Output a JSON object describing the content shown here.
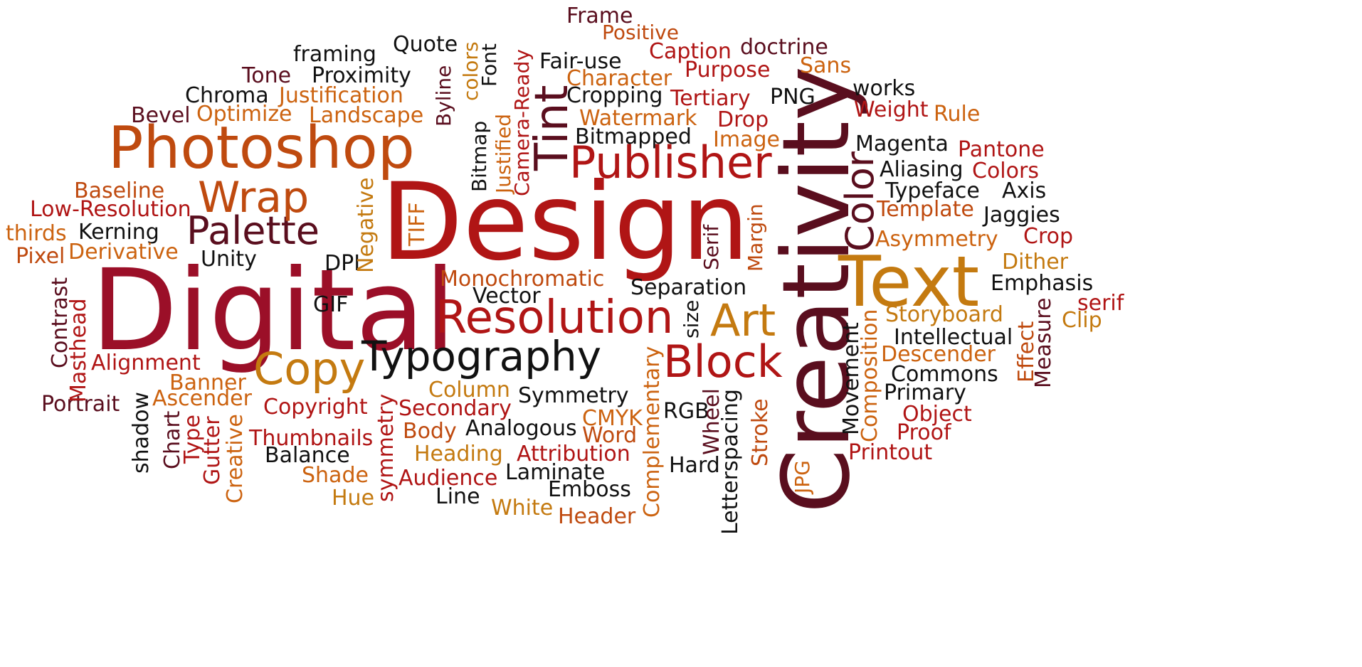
{
  "palette": {
    "maroon": "#5a0e1e",
    "crimson": "#9b0f28",
    "red": "#b01515",
    "rust": "#bf4a0f",
    "orange": "#cc6310",
    "amber": "#c47a10",
    "black": "#111111"
  },
  "words": [
    {
      "id": "digital",
      "text": "Digital",
      "color": "crimson"
    },
    {
      "id": "design",
      "text": "Design",
      "color": "red"
    },
    {
      "id": "creativity",
      "text": "Creativity",
      "color": "maroon"
    },
    {
      "id": "photoshop",
      "text": "Photoshop",
      "color": "rust"
    },
    {
      "id": "text",
      "text": "Text",
      "color": "amber"
    },
    {
      "id": "publisher",
      "text": "Publisher",
      "color": "red"
    },
    {
      "id": "resolution",
      "text": "Resolution",
      "color": "red"
    },
    {
      "id": "typography",
      "text": "Typography",
      "color": "black"
    },
    {
      "id": "palette-word",
      "text": "Palette",
      "color": "maroon"
    },
    {
      "id": "wrap",
      "text": "Wrap",
      "color": "rust"
    },
    {
      "id": "copy",
      "text": "Copy",
      "color": "amber"
    },
    {
      "id": "block",
      "text": "Block",
      "color": "red"
    },
    {
      "id": "art",
      "text": "Art",
      "color": "amber"
    },
    {
      "id": "tint",
      "text": "Tint",
      "color": "maroon"
    },
    {
      "id": "color",
      "text": "Color",
      "color": "maroon"
    },
    {
      "id": "frame",
      "text": "Frame",
      "color": "maroon"
    },
    {
      "id": "positive",
      "text": "Positive",
      "color": "rust"
    },
    {
      "id": "quote",
      "text": "Quote",
      "color": "black"
    },
    {
      "id": "framing",
      "text": "framing",
      "color": "black"
    },
    {
      "id": "fair-use",
      "text": "Fair-use",
      "color": "black"
    },
    {
      "id": "caption",
      "text": "Caption",
      "color": "red"
    },
    {
      "id": "doctrine",
      "text": "doctrine",
      "color": "maroon"
    },
    {
      "id": "sans",
      "text": "Sans",
      "color": "orange"
    },
    {
      "id": "tone",
      "text": "Tone",
      "color": "maroon"
    },
    {
      "id": "proximity",
      "text": "Proximity",
      "color": "black"
    },
    {
      "id": "character",
      "text": "Character",
      "color": "orange"
    },
    {
      "id": "purpose",
      "text": "Purpose",
      "color": "red"
    },
    {
      "id": "works",
      "text": "works",
      "color": "black"
    },
    {
      "id": "chroma",
      "text": "Chroma",
      "color": "black"
    },
    {
      "id": "justification",
      "text": "Justification",
      "color": "orange"
    },
    {
      "id": "cropping",
      "text": "Cropping",
      "color": "black"
    },
    {
      "id": "tertiary",
      "text": "Tertiary",
      "color": "red"
    },
    {
      "id": "png",
      "text": "PNG",
      "color": "black"
    },
    {
      "id": "weight",
      "text": "Weight",
      "color": "red"
    },
    {
      "id": "rule",
      "text": "Rule",
      "color": "orange"
    },
    {
      "id": "bevel",
      "text": "Bevel",
      "color": "maroon"
    },
    {
      "id": "optimize",
      "text": "Optimize",
      "color": "orange"
    },
    {
      "id": "landscape",
      "text": "Landscape",
      "color": "orange"
    },
    {
      "id": "watermark",
      "text": "Watermark",
      "color": "orange"
    },
    {
      "id": "drop",
      "text": "Drop",
      "color": "red"
    },
    {
      "id": "bitmapped",
      "text": "Bitmapped",
      "color": "black"
    },
    {
      "id": "image",
      "text": "Image",
      "color": "orange"
    },
    {
      "id": "magenta",
      "text": "Magenta",
      "color": "black"
    },
    {
      "id": "pantone",
      "text": "Pantone",
      "color": "red"
    },
    {
      "id": "aliasing",
      "text": "Aliasing",
      "color": "black"
    },
    {
      "id": "colors",
      "text": "Colors",
      "color": "red"
    },
    {
      "id": "typeface",
      "text": "Typeface",
      "color": "black"
    },
    {
      "id": "axis",
      "text": "Axis",
      "color": "black"
    },
    {
      "id": "baseline",
      "text": "Baseline",
      "color": "rust"
    },
    {
      "id": "template",
      "text": "Template",
      "color": "rust"
    },
    {
      "id": "low-resolution",
      "text": "Low-Resolution",
      "color": "red"
    },
    {
      "id": "jaggies",
      "text": "Jaggies",
      "color": "black"
    },
    {
      "id": "thirds",
      "text": "thirds",
      "color": "orange"
    },
    {
      "id": "kerning",
      "text": "Kerning",
      "color": "black"
    },
    {
      "id": "asymmetry",
      "text": "Asymmetry",
      "color": "orange"
    },
    {
      "id": "crop",
      "text": "Crop",
      "color": "red"
    },
    {
      "id": "pixel",
      "text": "Pixel",
      "color": "rust"
    },
    {
      "id": "derivative",
      "text": "Derivative",
      "color": "orange"
    },
    {
      "id": "unity",
      "text": "Unity",
      "color": "black"
    },
    {
      "id": "dpi",
      "text": "DPI",
      "color": "black"
    },
    {
      "id": "dither",
      "text": "Dither",
      "color": "amber"
    },
    {
      "id": "monochromatic",
      "text": "Monochromatic",
      "color": "rust"
    },
    {
      "id": "emphasis",
      "text": "Emphasis",
      "color": "black"
    },
    {
      "id": "separation",
      "text": "Separation",
      "color": "black"
    },
    {
      "id": "vector",
      "text": "Vector",
      "color": "black"
    },
    {
      "id": "serif",
      "text": "serif",
      "color": "red"
    },
    {
      "id": "gif",
      "text": "GIF",
      "color": "black"
    },
    {
      "id": "storyboard",
      "text": "Storyboard",
      "color": "amber"
    },
    {
      "id": "clip",
      "text": "Clip",
      "color": "amber"
    },
    {
      "id": "intellectual",
      "text": "Intellectual",
      "color": "black"
    },
    {
      "id": "descender",
      "text": "Descender",
      "color": "orange"
    },
    {
      "id": "alignment",
      "text": "Alignment",
      "color": "red"
    },
    {
      "id": "commons",
      "text": "Commons",
      "color": "black"
    },
    {
      "id": "banner",
      "text": "Banner",
      "color": "orange"
    },
    {
      "id": "column",
      "text": "Column",
      "color": "amber"
    },
    {
      "id": "symmetry",
      "text": "Symmetry",
      "color": "black"
    },
    {
      "id": "primary",
      "text": "Primary",
      "color": "black"
    },
    {
      "id": "portrait",
      "text": "Portrait",
      "color": "maroon"
    },
    {
      "id": "ascender",
      "text": "Ascender",
      "color": "orange"
    },
    {
      "id": "copyright",
      "text": "Copyright",
      "color": "red"
    },
    {
      "id": "secondary",
      "text": "Secondary",
      "color": "red"
    },
    {
      "id": "cmyk",
      "text": "CMYK",
      "color": "orange"
    },
    {
      "id": "rgb",
      "text": "RGB",
      "color": "black"
    },
    {
      "id": "object",
      "text": "Object",
      "color": "red"
    },
    {
      "id": "body",
      "text": "Body",
      "color": "rust"
    },
    {
      "id": "analogous",
      "text": "Analogous",
      "color": "black"
    },
    {
      "id": "word",
      "text": "Word",
      "color": "rust"
    },
    {
      "id": "proof",
      "text": "Proof",
      "color": "red"
    },
    {
      "id": "thumbnails",
      "text": "Thumbnails",
      "color": "red"
    },
    {
      "id": "balance",
      "text": "Balance",
      "color": "black"
    },
    {
      "id": "heading",
      "text": "Heading",
      "color": "amber"
    },
    {
      "id": "attribution",
      "text": "Attribution",
      "color": "red"
    },
    {
      "id": "printout",
      "text": "Printout",
      "color": "red"
    },
    {
      "id": "hard",
      "text": "Hard",
      "color": "black"
    },
    {
      "id": "shade",
      "text": "Shade",
      "color": "orange"
    },
    {
      "id": "audience",
      "text": "Audience",
      "color": "red"
    },
    {
      "id": "laminate",
      "text": "Laminate",
      "color": "black"
    },
    {
      "id": "hue",
      "text": "Hue",
      "color": "amber"
    },
    {
      "id": "line",
      "text": "Line",
      "color": "black"
    },
    {
      "id": "emboss",
      "text": "Emboss",
      "color": "black"
    },
    {
      "id": "white",
      "text": "White",
      "color": "amber"
    },
    {
      "id": "header",
      "text": "Header",
      "color": "rust"
    },
    {
      "id": "colors-v",
      "text": "colors",
      "color": "amber"
    },
    {
      "id": "font-v",
      "text": "Font",
      "color": "black"
    },
    {
      "id": "camera-ready-v",
      "text": "Camera-Ready",
      "color": "red"
    },
    {
      "id": "justified-v",
      "text": "Justified",
      "color": "orange"
    },
    {
      "id": "byline-v",
      "text": "Byline",
      "color": "maroon"
    },
    {
      "id": "bitmap-v",
      "text": "Bitmap",
      "color": "black"
    },
    {
      "id": "negative-v",
      "text": "Negative",
      "color": "amber"
    },
    {
      "id": "tiff-v",
      "text": "TIFF",
      "color": "orange"
    },
    {
      "id": "serif-v",
      "text": "Serif",
      "color": "maroon"
    },
    {
      "id": "margin-v",
      "text": "Margin",
      "color": "rust"
    },
    {
      "id": "size-v",
      "text": "size",
      "color": "black"
    },
    {
      "id": "contrast-v",
      "text": "Contrast",
      "color": "maroon"
    },
    {
      "id": "masthead-v",
      "text": "Masthead",
      "color": "red"
    },
    {
      "id": "shadow-v",
      "text": "shadow",
      "color": "black"
    },
    {
      "id": "chart-v",
      "text": "Chart",
      "color": "maroon"
    },
    {
      "id": "type-v",
      "text": "Type",
      "color": "red"
    },
    {
      "id": "gutter-v",
      "text": "Gutter",
      "color": "red"
    },
    {
      "id": "creative-v",
      "text": "Creative",
      "color": "orange"
    },
    {
      "id": "symmetry-v",
      "text": "symmetry",
      "color": "red"
    },
    {
      "id": "complementary-v",
      "text": "Complementary",
      "color": "orange"
    },
    {
      "id": "wheel-v",
      "text": "Wheel",
      "color": "maroon"
    },
    {
      "id": "letterspacing-v",
      "text": "Letterspacing",
      "color": "black"
    },
    {
      "id": "stroke-v",
      "text": "Stroke",
      "color": "rust"
    },
    {
      "id": "jpg-v",
      "text": "JPG",
      "color": "orange"
    },
    {
      "id": "movement-v",
      "text": "Movement",
      "color": "black"
    },
    {
      "id": "composition-v",
      "text": "Composition",
      "color": "orange"
    },
    {
      "id": "effect-v",
      "text": "Effect",
      "color": "rust"
    },
    {
      "id": "measure-v",
      "text": "Measure",
      "color": "maroon"
    }
  ]
}
